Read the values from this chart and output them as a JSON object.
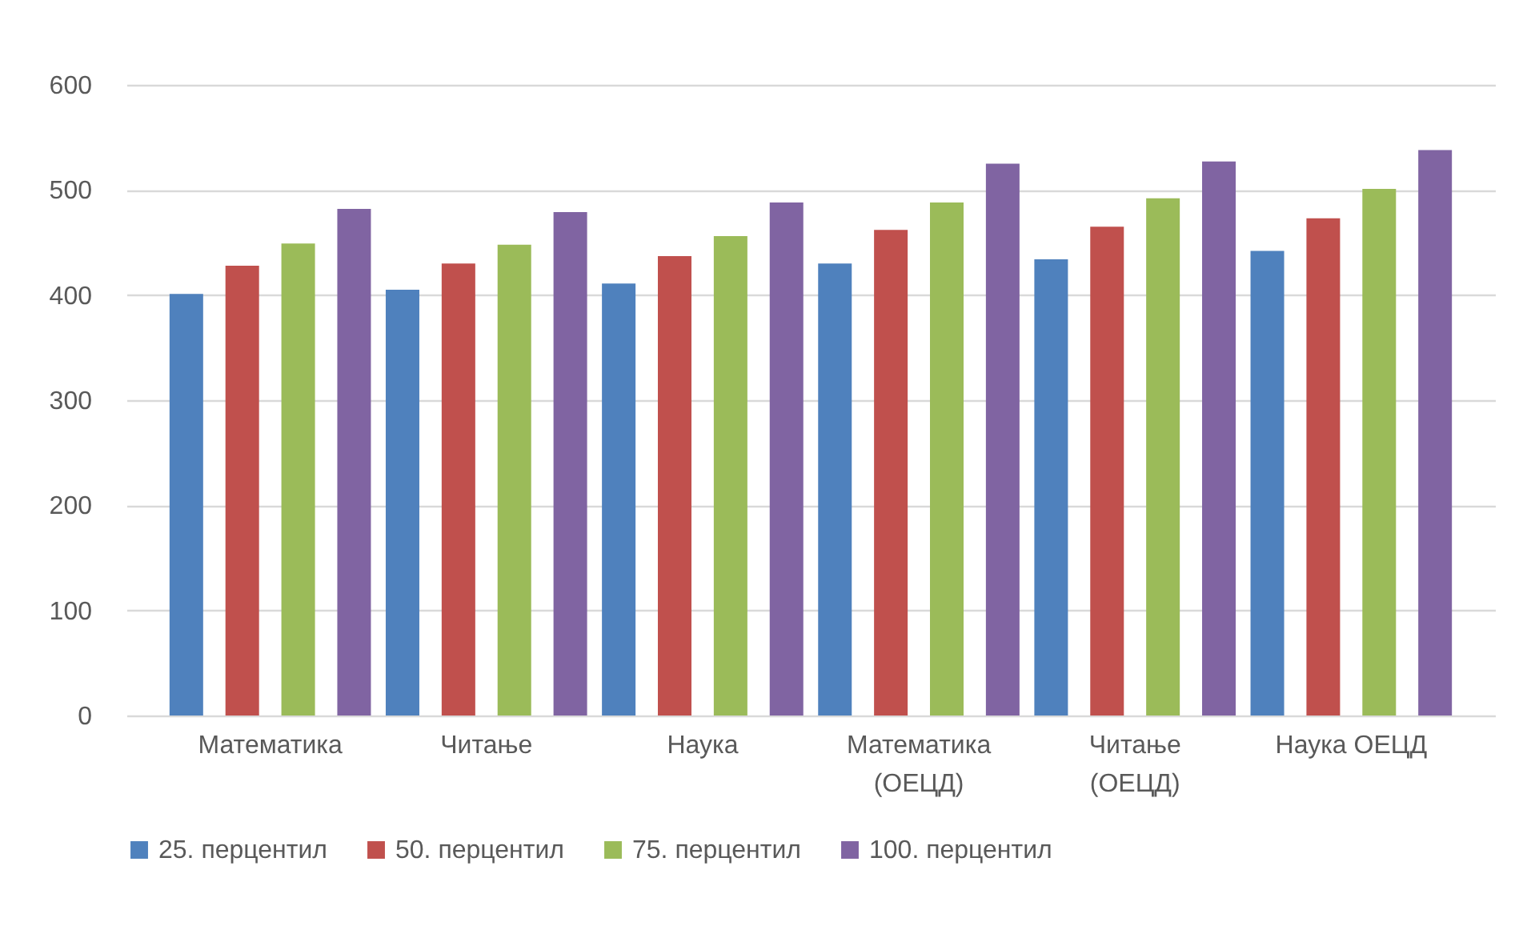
{
  "chart_data": {
    "type": "bar",
    "categories": [
      "Математика",
      "Читање",
      "Наука",
      "Математика (ОЕЦД)",
      "Читање (ОЕЦД)",
      "Наука ОЕЦД"
    ],
    "series": [
      {
        "name": "25. перцентил",
        "color": "#4f81bd",
        "values": [
          401,
          405,
          411,
          430,
          434,
          442
        ]
      },
      {
        "name": "50. перцентил",
        "color": "#c0504d",
        "values": [
          428,
          430,
          437,
          462,
          465,
          473
        ]
      },
      {
        "name": "75. перцентил",
        "color": "#9bbb59",
        "values": [
          449,
          448,
          456,
          488,
          492,
          501
        ]
      },
      {
        "name": "100. перцентил",
        "color": "#8064a2",
        "values": [
          482,
          479,
          488,
          525,
          527,
          538
        ]
      }
    ],
    "ylim": [
      0,
      600
    ],
    "yticks": [
      0,
      100,
      200,
      300,
      400,
      500,
      600
    ],
    "grid": "y",
    "legend": "bottom"
  }
}
